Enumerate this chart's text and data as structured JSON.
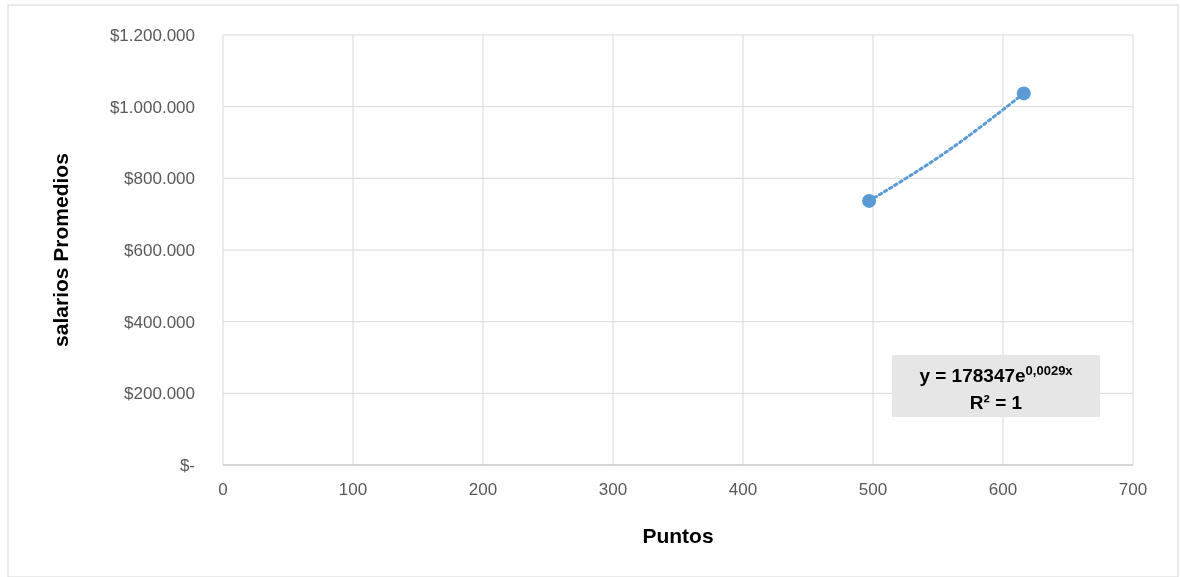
{
  "chart_data": {
    "type": "scatter",
    "xlabel": "Puntos",
    "ylabel": "salarios Promedios",
    "xlim": [
      0,
      700
    ],
    "xticks": [
      0,
      100,
      200,
      300,
      400,
      500,
      600,
      700
    ],
    "ylim": [
      0,
      1200000
    ],
    "yticks": [
      {
        "value": 0,
        "label": "$-"
      },
      {
        "value": 200000,
        "label": "$200.000"
      },
      {
        "value": 400000,
        "label": "$400.000"
      },
      {
        "value": 600000,
        "label": "$600.000"
      },
      {
        "value": 800000,
        "label": "$800.000"
      },
      {
        "value": 1000000,
        "label": "$1.000.000"
      },
      {
        "value": 1200000,
        "label": "$1.200.000"
      }
    ],
    "grid": true,
    "marker": "circle",
    "series": [
      {
        "color": "#5b9bd5",
        "x": [
          497,
          616
        ],
        "values": [
          737000,
          1037000
        ]
      },
      {
        "type": "line",
        "color": "#5b9bd5",
        "line_style": "dotted",
        "marker": "none",
        "x": [
          497,
          556.5,
          616
        ],
        "values": [
          737000,
          874000,
          1037000
        ]
      }
    ],
    "annotations": [
      "y = 178347e$^{0,0029x}$",
      "R² = 1"
    ]
  }
}
